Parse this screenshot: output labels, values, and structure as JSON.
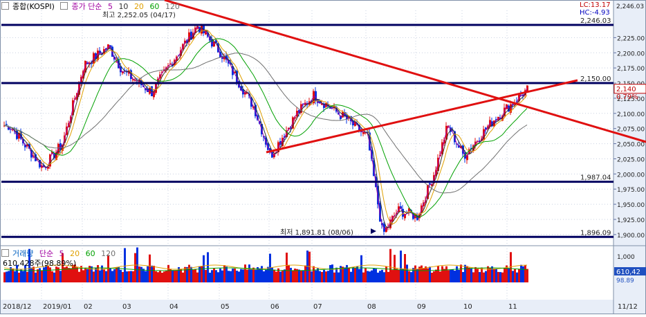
{
  "price_legend": {
    "title": "종합(KOSPI)",
    "ma_label": "종가 단순",
    "periods": [
      "5",
      "10",
      "20",
      "60",
      "120"
    ],
    "period_colors": [
      "#a000a0",
      "#303030",
      "#e0a000",
      "#00a000",
      "#707070"
    ]
  },
  "lc_label": "LC:13.17",
  "hc_label": "HC:-4.93",
  "volume_legend": {
    "title": "거래량",
    "ma_label": "단순",
    "periods": [
      "5",
      "20",
      "60",
      "120"
    ],
    "period_colors": [
      "#a000a0",
      "#e0a000",
      "#00a000",
      "#707070"
    ],
    "current": "610,428주(98.89%)"
  },
  "annotations": {
    "high": "최고 2,252.05 (04/17)",
    "low": "최저 1,891.81 (08/06)"
  },
  "price_axis_ticks": [
    "2,225.00",
    "2,200.00",
    "2,175.00",
    "2,150.00",
    "2,125.00",
    "2,100.00",
    "2,075.00",
    "2,050.00",
    "2,025.00",
    "2,000.00",
    "1,975.00",
    "1,950.00",
    "1,925.00",
    "1,900.00"
  ],
  "level_labels": [
    "2,246.03",
    "2,150.00",
    "1,987.04",
    "1,896.09"
  ],
  "current_price": "2,140",
  "current_change": "0.79%",
  "volume_axis": {
    "tick": "1,000",
    "current": "610,42",
    "current_pct": "98.89"
  },
  "x_labels": [
    "2018/12",
    "2019/01",
    "02",
    "03",
    "04",
    "05",
    "06",
    "07",
    "08",
    "09",
    "10",
    "11"
  ],
  "right_date": "11/12",
  "colors": {
    "up": "#e01010",
    "down": "#0030e0",
    "level": "#000060",
    "trend": "#e01010",
    "axis_bg": "#e8eef8"
  },
  "chart_data": {
    "type": "candlestick",
    "x": [
      "2018-12",
      "2019-01",
      "2019-02",
      "2019-03",
      "2019-04",
      "2019-05",
      "2019-06",
      "2019-07",
      "2019-08",
      "2019-09",
      "2019-10",
      "2019-11"
    ],
    "anchors": [
      {
        "x": "2018-12",
        "y": 2080
      },
      {
        "x": "2019-01",
        "y": 2010
      },
      {
        "x": "2019-01",
        "y": 2050
      },
      {
        "x": "2019-02",
        "y": 2180
      },
      {
        "x": "2019-02",
        "y": 2210
      },
      {
        "x": "2019-03",
        "y": 2170
      },
      {
        "x": "2019-03",
        "y": 2135
      },
      {
        "x": "2019-04",
        "y": 2180
      },
      {
        "x": "2019-04",
        "y": 2245
      },
      {
        "x": "2019-05",
        "y": 2200
      },
      {
        "x": "2019-05",
        "y": 2110
      },
      {
        "x": "2019-06",
        "y": 2030
      },
      {
        "x": "2019-06",
        "y": 2100
      },
      {
        "x": "2019-07",
        "y": 2130
      },
      {
        "x": "2019-07",
        "y": 2090
      },
      {
        "x": "2019-08",
        "y": 2060
      },
      {
        "x": "2019-08",
        "y": 1900
      },
      {
        "x": "2019-08",
        "y": 1940
      },
      {
        "x": "2019-09",
        "y": 1930
      },
      {
        "x": "2019-09",
        "y": 2000
      },
      {
        "x": "2019-09",
        "y": 2080
      },
      {
        "x": "2019-10",
        "y": 2030
      },
      {
        "x": "2019-10",
        "y": 2090
      },
      {
        "x": "2019-11",
        "y": 2140
      }
    ],
    "extremes": {
      "high": 2252.05,
      "high_date": "04/17",
      "low": 1891.81,
      "low_date": "08/06"
    },
    "levels": [
      2246.03,
      2150.0,
      1987.04,
      1896.09
    ],
    "trendlines": [
      {
        "from": {
          "x": "2019-04",
          "y": 2250
        },
        "to": {
          "x": "2019-11",
          "y": 2040
        }
      },
      {
        "from": {
          "x": "2019-06",
          "y": 2022
        },
        "to": {
          "x": "2019-11",
          "y": 2135
        }
      }
    ],
    "moving_averages": [
      "5",
      "10",
      "20",
      "60",
      "120"
    ],
    "ylim": [
      1885,
      2270
    ],
    "last_close": 2140,
    "last_change_pct": 0.79,
    "volume": {
      "last": 610428,
      "last_pct": 98.89,
      "ytick": 1000
    }
  }
}
